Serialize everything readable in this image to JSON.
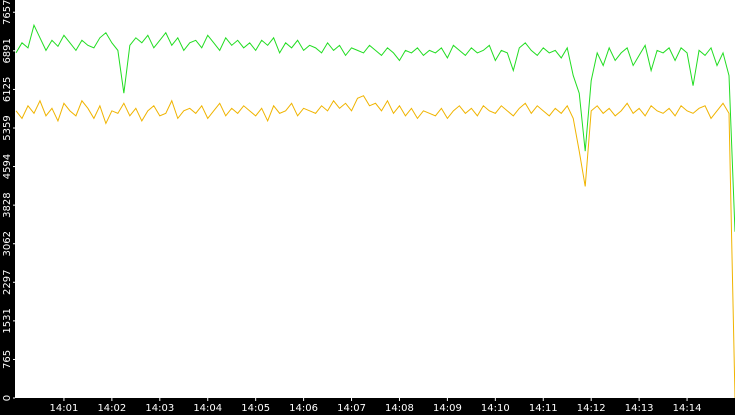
{
  "chart_data": {
    "type": "line",
    "x": [
      0,
      0.125,
      0.25,
      0.375,
      0.5,
      0.625,
      0.75,
      0.875,
      1,
      1.125,
      1.25,
      1.375,
      1.5,
      1.625,
      1.75,
      1.875,
      2,
      2.125,
      2.25,
      2.375,
      2.5,
      2.625,
      2.75,
      2.875,
      3,
      3.125,
      3.25,
      3.375,
      3.5,
      3.625,
      3.75,
      3.875,
      4,
      4.125,
      4.25,
      4.375,
      4.5,
      4.625,
      4.75,
      4.875,
      5,
      5.125,
      5.25,
      5.375,
      5.5,
      5.625,
      5.75,
      5.875,
      6,
      6.125,
      6.25,
      6.375,
      6.5,
      6.625,
      6.75,
      6.875,
      7,
      7.125,
      7.25,
      7.375,
      7.5,
      7.625,
      7.75,
      7.875,
      8,
      8.125,
      8.25,
      8.375,
      8.5,
      8.625,
      8.75,
      8.875,
      9,
      9.125,
      9.25,
      9.375,
      9.5,
      9.625,
      9.75,
      9.875,
      10,
      10.125,
      10.25,
      10.375,
      10.5,
      10.625,
      10.75,
      10.875,
      11,
      11.125,
      11.25,
      11.375,
      11.5,
      11.625,
      11.75,
      11.875,
      12,
      12.125,
      12.25,
      12.375,
      12.5,
      12.625,
      12.75,
      12.875,
      13,
      13.125,
      13.25,
      13.375,
      13.5,
      13.625,
      13.75,
      13.875,
      14,
      14.125,
      14.25,
      14.375,
      14.5,
      14.625,
      14.75,
      14.875,
      15
    ],
    "series": [
      {
        "color": "#22dd22",
        "values": [
          6850,
          7050,
          6950,
          7400,
          7150,
          6900,
          7100,
          6980,
          7200,
          7050,
          6900,
          7100,
          7000,
          6950,
          7150,
          7250,
          7050,
          6900,
          6050,
          7000,
          7150,
          7050,
          7200,
          6950,
          7100,
          7250,
          7000,
          7150,
          6900,
          7050,
          7100,
          6950,
          7200,
          7050,
          6900,
          7150,
          7000,
          7100,
          6950,
          7050,
          6900,
          7100,
          7000,
          7150,
          6850,
          7050,
          6950,
          7100,
          6900,
          7000,
          6950,
          6850,
          7050,
          6900,
          7000,
          6800,
          6950,
          6900,
          6850,
          7000,
          6900,
          6800,
          6950,
          6850,
          6700,
          6900,
          6850,
          6950,
          6800,
          6900,
          6850,
          6950,
          6750,
          7000,
          6900,
          6800,
          6950,
          6850,
          6900,
          7000,
          6700,
          6900,
          6850,
          6500,
          6950,
          7050,
          6900,
          6800,
          6950,
          6850,
          6900,
          6750,
          6950,
          6400,
          6050,
          4900,
          6300,
          6850,
          6600,
          6950,
          6700,
          6850,
          6950,
          6600,
          6800,
          7000,
          6500,
          6900,
          6850,
          6950,
          6700,
          6950,
          6850,
          6200,
          6900,
          6800,
          6950,
          6600,
          6850,
          6400,
          3300
        ]
      },
      {
        "color": "#f0b400",
        "values": [
          5700,
          5550,
          5800,
          5650,
          5900,
          5600,
          5750,
          5500,
          5850,
          5700,
          5600,
          5900,
          5750,
          5550,
          5800,
          5450,
          5700,
          5650,
          5850,
          5600,
          5750,
          5500,
          5700,
          5800,
          5600,
          5650,
          5900,
          5550,
          5700,
          5750,
          5650,
          5800,
          5550,
          5700,
          5850,
          5600,
          5750,
          5650,
          5800,
          5700,
          5600,
          5750,
          5500,
          5800,
          5650,
          5700,
          5850,
          5600,
          5750,
          5700,
          5650,
          5800,
          5700,
          5900,
          5750,
          5850,
          5700,
          5950,
          6000,
          5800,
          5850,
          5700,
          5900,
          5650,
          5800,
          5600,
          5750,
          5550,
          5700,
          5650,
          5600,
          5750,
          5550,
          5700,
          5800,
          5650,
          5750,
          5600,
          5800,
          5700,
          5650,
          5800,
          5700,
          5600,
          5750,
          5850,
          5650,
          5800,
          5700,
          5600,
          5750,
          5650,
          5800,
          5550,
          4900,
          4200,
          5700,
          5800,
          5650,
          5750,
          5600,
          5700,
          5850,
          5650,
          5750,
          5600,
          5800,
          5700,
          5650,
          5750,
          5600,
          5800,
          5700,
          5650,
          5750,
          5800,
          5550,
          5700,
          5850,
          5650,
          0
        ]
      }
    ],
    "xlim": [
      0,
      15
    ],
    "xticks": [
      {
        "value": 1,
        "label": "14:01"
      },
      {
        "value": 2,
        "label": "14:02"
      },
      {
        "value": 3,
        "label": "14:03"
      },
      {
        "value": 4,
        "label": "14:04"
      },
      {
        "value": 5,
        "label": "14:05"
      },
      {
        "value": 6,
        "label": "14:06"
      },
      {
        "value": 7,
        "label": "14:07"
      },
      {
        "value": 8,
        "label": "14:08"
      },
      {
        "value": 9,
        "label": "14:09"
      },
      {
        "value": 10,
        "label": "14:10"
      },
      {
        "value": 11,
        "label": "14:11"
      },
      {
        "value": 12,
        "label": "14:12"
      },
      {
        "value": 13,
        "label": "14:13"
      },
      {
        "value": 14,
        "label": "14:14"
      }
    ],
    "ylim": [
      0,
      7900
    ],
    "yticks": [
      0,
      765,
      1531,
      2297,
      3062,
      3828,
      4594,
      5359,
      6125,
      6891,
      7657
    ],
    "grid": false
  }
}
